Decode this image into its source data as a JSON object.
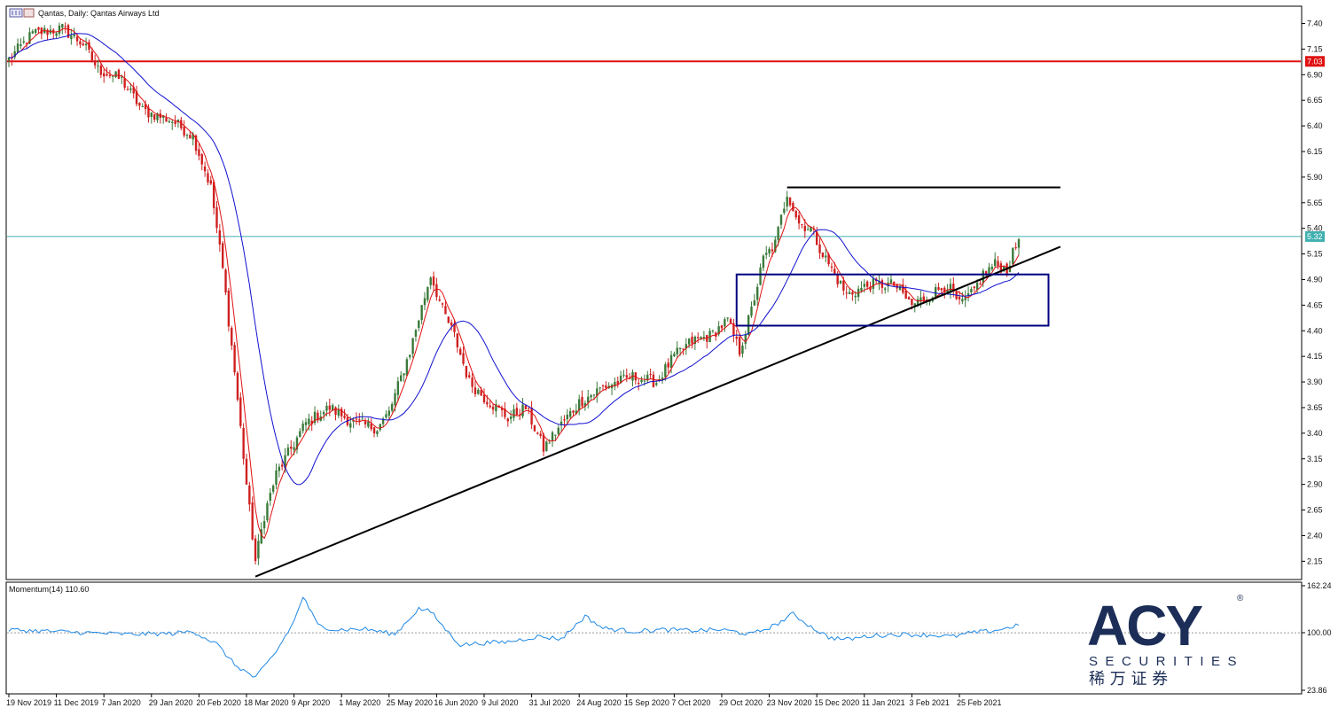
{
  "window": {
    "symbol": "Qantas",
    "timeframe": "Daily",
    "instrument": "Qantas Airways Ltd",
    "title": "Qantas, Daily:  Qantas Airways Ltd"
  },
  "indicator": {
    "label": "Momentum(14) 110.60",
    "name": "Momentum",
    "period": 14,
    "value": 110.6,
    "scale_max_label": "162.24",
    "mid_label": "100.00",
    "scale_min_label": "23.86",
    "range": [
      23.86,
      162.24
    ],
    "color": "#1e88e5"
  },
  "logo": {
    "brand": "ACY",
    "registered": "®",
    "sub": "SECURITIES",
    "chinese": "稀 万 证 券",
    "color": "#1c2e57"
  },
  "colors": {
    "bull": "#3a7a3a",
    "bear": "#d02020",
    "ma_fast": "#e01010",
    "ma_slow": "#1010d0",
    "resistance": "#e01010",
    "current_line": "#40b0b0",
    "box": "#000080",
    "trendline": "#000000"
  },
  "chart_data": {
    "type": "candlestick",
    "x_tick_labels": [
      "19 Nov 2019",
      "11 Dec 2019",
      "7 Jan 2020",
      "29 Jan 2020",
      "20 Feb 2020",
      "18 Mar 2020",
      "9 Apr 2020",
      "1 May 2020",
      "25 May 2020",
      "16 Jun 2020",
      "9 Jul 2020",
      "31 Jul 2020",
      "24 Aug 2020",
      "15 Sep 2020",
      "7 Oct 2020",
      "29 Oct 2020",
      "23 Nov 2020",
      "15 Dec 2020",
      "11 Jan 2021",
      "3 Feb 2021",
      "25 Feb 2021"
    ],
    "y_tick_labels": [
      "7.40",
      "7.15",
      "6.90",
      "6.65",
      "6.40",
      "6.15",
      "5.90",
      "5.65",
      "5.40",
      "5.15",
      "4.90",
      "4.65",
      "4.40",
      "4.15",
      "3.90",
      "3.65",
      "3.40",
      "3.15",
      "2.90",
      "2.65",
      "2.40",
      "2.15"
    ],
    "ylim": [
      1.98,
      7.56
    ],
    "price_key_points": [
      [
        0,
        7.05
      ],
      [
        8,
        7.3
      ],
      [
        18,
        7.35
      ],
      [
        25,
        7.2
      ],
      [
        30,
        6.95
      ],
      [
        38,
        6.85
      ],
      [
        45,
        6.55
      ],
      [
        55,
        6.45
      ],
      [
        62,
        6.3
      ],
      [
        68,
        5.8
      ],
      [
        72,
        5.0
      ],
      [
        76,
        4.0
      ],
      [
        80,
        2.9
      ],
      [
        83,
        2.15
      ],
      [
        86,
        2.6
      ],
      [
        90,
        3.0
      ],
      [
        95,
        3.25
      ],
      [
        100,
        3.5
      ],
      [
        108,
        3.65
      ],
      [
        116,
        3.5
      ],
      [
        124,
        3.45
      ],
      [
        128,
        3.6
      ],
      [
        135,
        4.2
      ],
      [
        142,
        4.95
      ],
      [
        146,
        4.6
      ],
      [
        150,
        4.35
      ],
      [
        155,
        3.9
      ],
      [
        160,
        3.75
      ],
      [
        168,
        3.55
      ],
      [
        174,
        3.65
      ],
      [
        180,
        3.25
      ],
      [
        185,
        3.45
      ],
      [
        192,
        3.7
      ],
      [
        200,
        3.85
      ],
      [
        210,
        3.95
      ],
      [
        218,
        3.9
      ],
      [
        224,
        4.15
      ],
      [
        230,
        4.3
      ],
      [
        236,
        4.35
      ],
      [
        242,
        4.5
      ],
      [
        246,
        4.2
      ],
      [
        250,
        4.6
      ],
      [
        254,
        5.1
      ],
      [
        258,
        5.25
      ],
      [
        262,
        5.75
      ],
      [
        266,
        5.45
      ],
      [
        270,
        5.4
      ],
      [
        274,
        5.15
      ],
      [
        278,
        4.95
      ],
      [
        282,
        4.75
      ],
      [
        290,
        4.85
      ],
      [
        298,
        4.85
      ],
      [
        304,
        4.65
      ],
      [
        310,
        4.75
      ],
      [
        316,
        4.85
      ],
      [
        320,
        4.65
      ],
      [
        324,
        4.75
      ],
      [
        328,
        4.95
      ],
      [
        332,
        5.05
      ],
      [
        336,
        5.0
      ],
      [
        340,
        5.3
      ]
    ],
    "resistance_level": 7.03,
    "resistance_label": "7.03",
    "current_price": 5.32,
    "current_price_label": "5.32",
    "top_line": {
      "price": 5.8,
      "start_bar": 262,
      "end_bar": 354
    },
    "trendline": {
      "start_bar": 83,
      "start_price": 2.0,
      "end_bar": 354,
      "end_price": 5.22
    },
    "box": {
      "start_bar": 245,
      "end_bar": 350,
      "top": 4.95,
      "bottom": 4.45
    },
    "ma_fast_period": 5,
    "ma_slow_period": 20,
    "momentum_key_points": [
      [
        0,
        104
      ],
      [
        20,
        101
      ],
      [
        40,
        98
      ],
      [
        55,
        99
      ],
      [
        62,
        102
      ],
      [
        70,
        85
      ],
      [
        76,
        58
      ],
      [
        83,
        40
      ],
      [
        90,
        75
      ],
      [
        96,
        115
      ],
      [
        99,
        148
      ],
      [
        104,
        110
      ],
      [
        110,
        104
      ],
      [
        120,
        105
      ],
      [
        130,
        98
      ],
      [
        138,
        132
      ],
      [
        142,
        128
      ],
      [
        148,
        100
      ],
      [
        152,
        84
      ],
      [
        158,
        86
      ],
      [
        168,
        88
      ],
      [
        178,
        95
      ],
      [
        186,
        92
      ],
      [
        194,
        122
      ],
      [
        200,
        106
      ],
      [
        210,
        102
      ],
      [
        220,
        104
      ],
      [
        230,
        103
      ],
      [
        240,
        104
      ],
      [
        250,
        98
      ],
      [
        258,
        110
      ],
      [
        264,
        125
      ],
      [
        270,
        108
      ],
      [
        276,
        94
      ],
      [
        282,
        91
      ],
      [
        290,
        96
      ],
      [
        300,
        98
      ],
      [
        310,
        97
      ],
      [
        318,
        95
      ],
      [
        324,
        100
      ],
      [
        330,
        102
      ],
      [
        336,
        106
      ],
      [
        340,
        111
      ]
    ]
  }
}
